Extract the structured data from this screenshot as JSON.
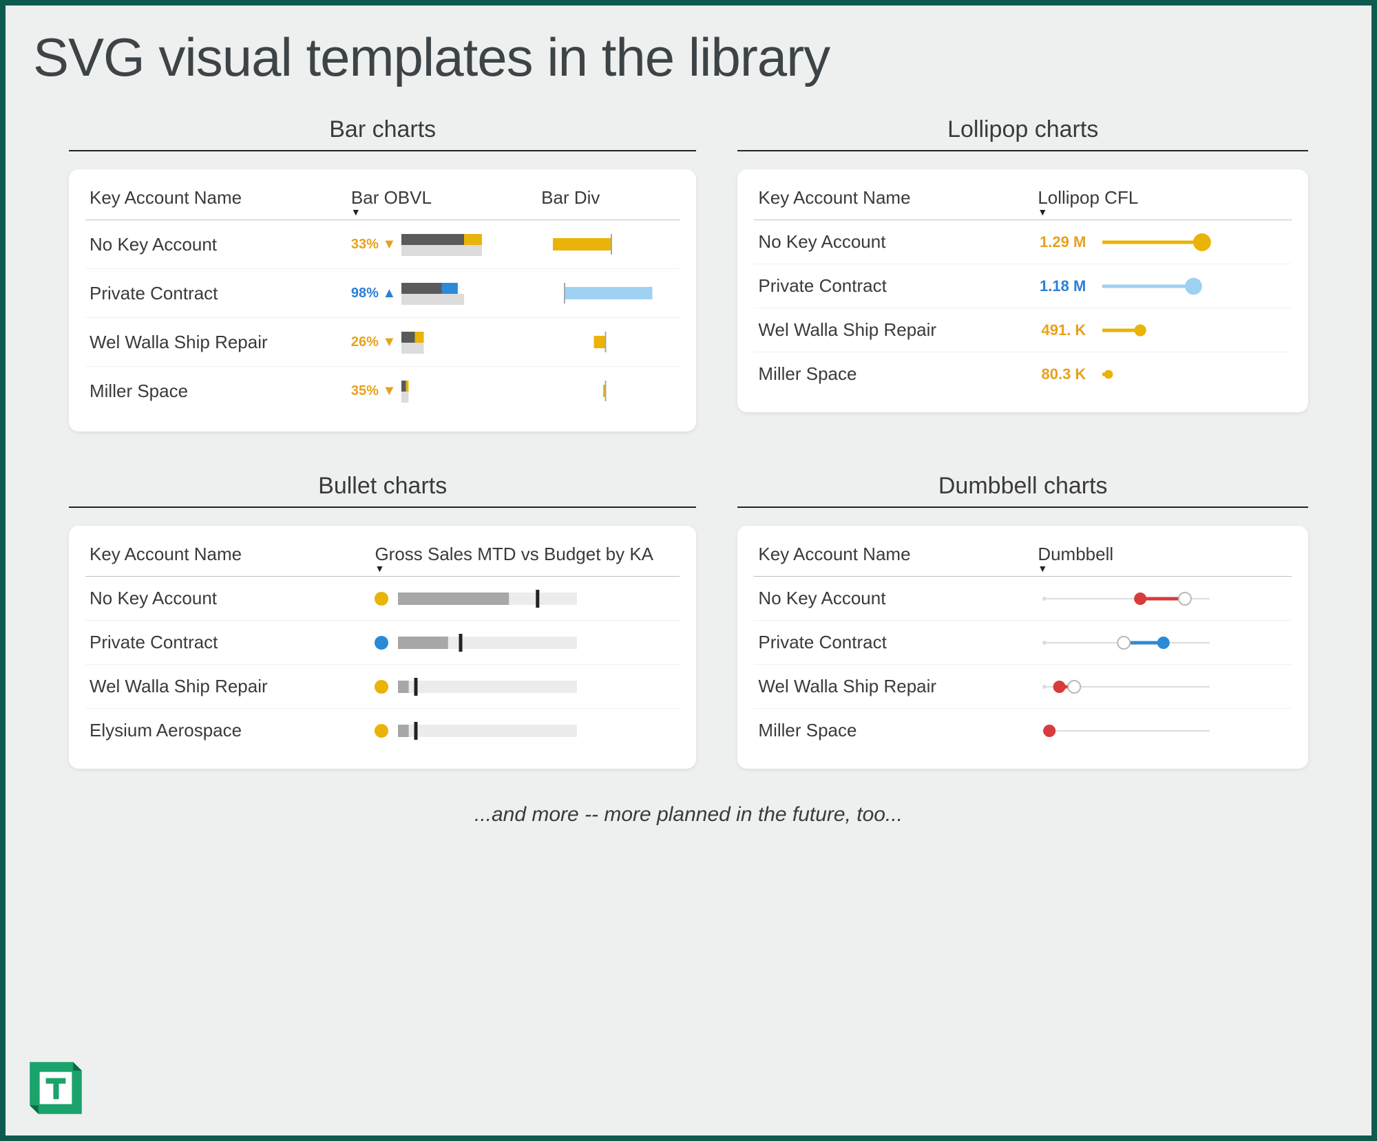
{
  "page": {
    "title": "SVG visual templates in the library",
    "footer": "...and more -- more planned in the future, too...",
    "background_color": "#eef0ef",
    "frame_border_color": "#0d5a4f",
    "card_background": "#ffffff",
    "title_color": "#3d4447",
    "title_fontsize": 78
  },
  "colors": {
    "orange": "#eab308",
    "orange_text": "#e7a11c",
    "blue": "#2a8ad6",
    "blue_text": "#2a7fd6",
    "lightblue": "#9fd1f3",
    "darkgray": "#5a5a5a",
    "midgray": "#a7a7a7",
    "lightgray": "#dcdcdc",
    "paletrack": "#ececec",
    "red": "#d73b3b",
    "white_dot": "#ffffff",
    "dot_border": "#b8b8b8",
    "tick_black": "#222222"
  },
  "sections": {
    "bar": {
      "title": "Bar charts",
      "headers": [
        "Key Account Name",
        "Bar OBVL",
        "Bar Div"
      ],
      "sort_indicator_col": 1,
      "obvl_max": 100,
      "div_max": 100,
      "rows": [
        {
          "name": "No Key Account",
          "pct_text": "33%",
          "pct_arrow": "▼",
          "pct_color": "orange_text",
          "obvl": {
            "back_w": 90,
            "top_w": 70,
            "top_fill": "darkgray",
            "accent_start": 70,
            "accent_w": 20,
            "accent_fill": "orange"
          },
          "div": {
            "center": 60,
            "bar_start": 10,
            "bar_end": 60,
            "fill": "orange"
          }
        },
        {
          "name": "Private Contract",
          "pct_text": "98%",
          "pct_arrow": "▲",
          "pct_color": "blue_text",
          "obvl": {
            "back_w": 70,
            "top_w": 45,
            "top_fill": "darkgray",
            "accent_start": 45,
            "accent_w": 18,
            "accent_fill": "blue"
          },
          "div": {
            "center": 20,
            "bar_start": 20,
            "bar_end": 95,
            "fill": "lightblue"
          }
        },
        {
          "name": "Wel Walla Ship Repair",
          "pct_text": "26%",
          "pct_arrow": "▼",
          "pct_color": "orange_text",
          "obvl": {
            "back_w": 25,
            "top_w": 15,
            "top_fill": "darkgray",
            "accent_start": 15,
            "accent_w": 10,
            "accent_fill": "orange"
          },
          "div": {
            "center": 55,
            "bar_start": 45,
            "bar_end": 55,
            "fill": "orange"
          }
        },
        {
          "name": "Miller Space",
          "pct_text": "35%",
          "pct_arrow": "▼",
          "pct_color": "orange_text",
          "obvl": {
            "back_w": 8,
            "top_w": 5,
            "top_fill": "darkgray",
            "accent_start": 5,
            "accent_w": 3,
            "accent_fill": "orange"
          },
          "div": {
            "center": 55,
            "bar_start": 53,
            "bar_end": 55,
            "fill": "orange"
          }
        }
      ]
    },
    "lollipop": {
      "title": "Lollipop charts",
      "headers": [
        "Key Account Name",
        "Lollipop CFL"
      ],
      "sort_indicator_col": 1,
      "max": 1.3,
      "rows": [
        {
          "name": "No Key Account",
          "label": "1.29 M",
          "value": 1.29,
          "color": "orange",
          "text_color": "orange_text"
        },
        {
          "name": "Private Contract",
          "label": "1.18 M",
          "value": 1.18,
          "color": "lightblue",
          "text_color": "blue_text"
        },
        {
          "name": "Wel Walla Ship Repair",
          "label": "491. K",
          "value": 0.491,
          "color": "orange",
          "text_color": "orange_text"
        },
        {
          "name": "Miller Space",
          "label": "80.3 K",
          "value": 0.0803,
          "color": "orange",
          "text_color": "orange_text"
        }
      ]
    },
    "bullet": {
      "title": "Bullet charts",
      "headers": [
        "Key Account Name",
        "Gross Sales MTD vs Budget by KA"
      ],
      "sort_indicator_col": 1,
      "max": 100,
      "rows": [
        {
          "name": "No Key Account",
          "dot_color": "orange",
          "fill": 62,
          "target": 78
        },
        {
          "name": "Private Contract",
          "dot_color": "blue",
          "fill": 28,
          "target": 35
        },
        {
          "name": "Wel Walla Ship Repair",
          "dot_color": "orange",
          "fill": 6,
          "target": 10
        },
        {
          "name": "Elysium Aerospace",
          "dot_color": "orange",
          "fill": 6,
          "target": 10
        }
      ]
    },
    "dumbbell": {
      "title": "Dumbbell charts",
      "headers": [
        "Key Account Name",
        "Dumbbell"
      ],
      "sort_indicator_col": 1,
      "max": 100,
      "rows": [
        {
          "name": "No Key Account",
          "a": 58,
          "b": 85,
          "color": "red",
          "a_solid": true,
          "b_solid": false
        },
        {
          "name": "Private Contract",
          "a": 48,
          "b": 72,
          "color": "blue",
          "a_solid": false,
          "b_solid": true
        },
        {
          "name": "Wel Walla Ship Repair",
          "a": 9,
          "b": 18,
          "color": "red",
          "a_solid": true,
          "b_solid": false
        },
        {
          "name": "Miller Space",
          "a": 3,
          "b": 3,
          "color": "red",
          "a_solid": true,
          "b_solid": true
        }
      ]
    }
  }
}
